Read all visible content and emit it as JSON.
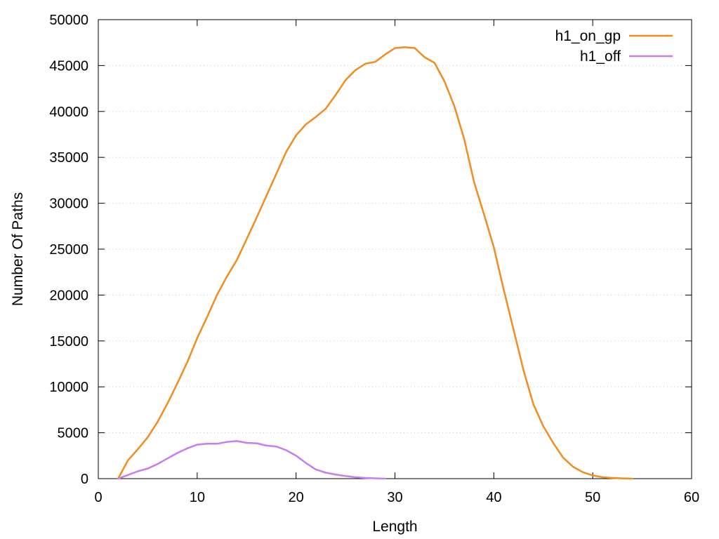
{
  "chart_data": {
    "type": "line",
    "title": "",
    "xlabel": "Length",
    "ylabel": "Number Of Paths",
    "xlim": [
      0,
      60
    ],
    "ylim": [
      0,
      50000
    ],
    "xticks": [
      0,
      10,
      20,
      30,
      40,
      50,
      60
    ],
    "yticks": [
      0,
      5000,
      10000,
      15000,
      20000,
      25000,
      30000,
      35000,
      40000,
      45000,
      50000
    ],
    "grid": "horizontal dotted",
    "legend_position": "top-right",
    "series": [
      {
        "name": "h1_on_gp",
        "color": "#f28c1e",
        "x": [
          2,
          3,
          4,
          5,
          6,
          7,
          8,
          9,
          10,
          11,
          12,
          13,
          14,
          15,
          16,
          17,
          18,
          19,
          20,
          21,
          22,
          23,
          24,
          25,
          26,
          27,
          28,
          29,
          30,
          31,
          32,
          33,
          34,
          35,
          36,
          37,
          38,
          39,
          40,
          41,
          42,
          43,
          44,
          45,
          46,
          47,
          48,
          49,
          50,
          51,
          52,
          53,
          54
        ],
        "y": [
          0,
          2000,
          3200,
          4500,
          6200,
          8200,
          10400,
          12700,
          15300,
          17600,
          20000,
          22000,
          23800,
          26100,
          28400,
          30800,
          33200,
          35600,
          37400,
          38600,
          39400,
          40300,
          41800,
          43400,
          44500,
          45200,
          45400,
          46200,
          46900,
          47000,
          46900,
          45900,
          45300,
          43300,
          40600,
          37000,
          32300,
          28800,
          25200,
          20600,
          16200,
          11800,
          8100,
          5700,
          3900,
          2300,
          1300,
          700,
          350,
          150,
          80,
          30,
          0
        ]
      },
      {
        "name": "h1_off",
        "color": "#c77cf0",
        "x": [
          2,
          3,
          4,
          5,
          6,
          7,
          8,
          9,
          10,
          11,
          12,
          13,
          14,
          15,
          16,
          17,
          18,
          19,
          20,
          21,
          22,
          23,
          24,
          25,
          26,
          27,
          28,
          29
        ],
        "y": [
          0,
          400,
          800,
          1100,
          1600,
          2200,
          2800,
          3300,
          3700,
          3800,
          3800,
          4000,
          4100,
          3900,
          3850,
          3600,
          3500,
          3100,
          2500,
          1700,
          1000,
          650,
          450,
          280,
          150,
          80,
          40,
          0
        ]
      }
    ]
  }
}
